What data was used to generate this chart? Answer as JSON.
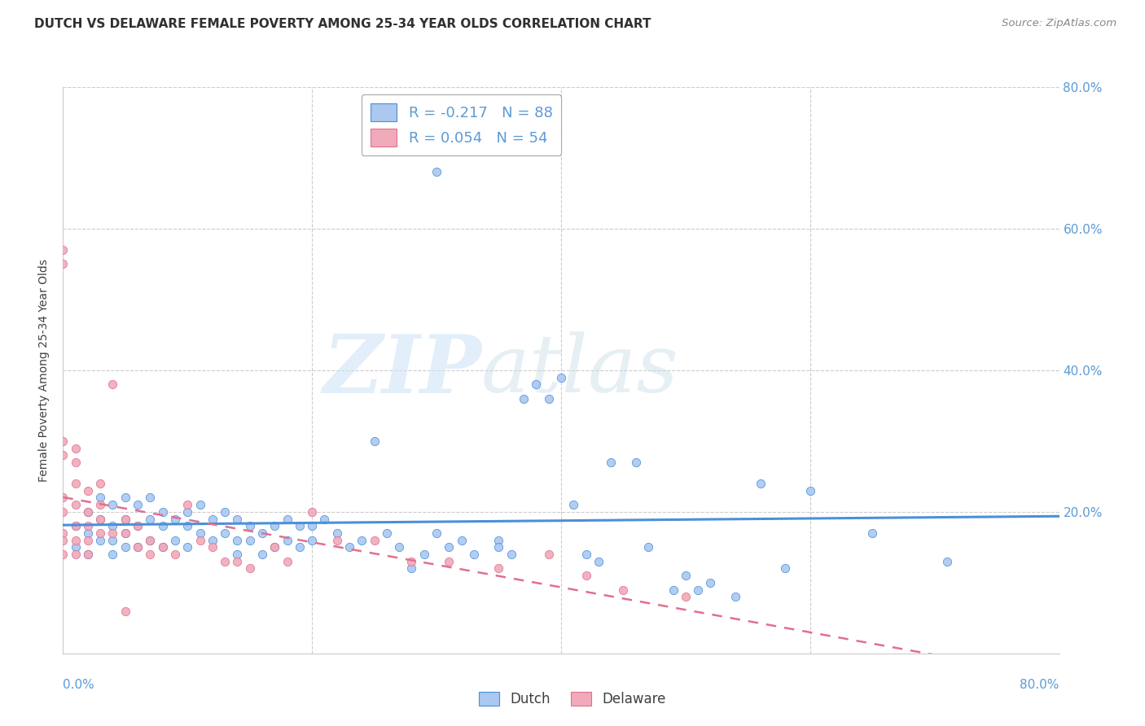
{
  "title": "DUTCH VS DELAWARE FEMALE POVERTY AMONG 25-34 YEAR OLDS CORRELATION CHART",
  "source": "Source: ZipAtlas.com",
  "ylabel": "Female Poverty Among 25-34 Year Olds",
  "xlim": [
    0.0,
    0.8
  ],
  "ylim": [
    0.0,
    0.8
  ],
  "xtick_vals": [
    0.0,
    0.2,
    0.4,
    0.6,
    0.8
  ],
  "ytick_vals": [
    0.0,
    0.2,
    0.4,
    0.6,
    0.8
  ],
  "dutch_R": -0.217,
  "dutch_N": 88,
  "delaware_R": 0.054,
  "delaware_N": 54,
  "dutch_color": "#aac8f0",
  "delaware_color": "#f0aaba",
  "dutch_line_color": "#4a90d9",
  "delaware_line_color": "#e07090",
  "legend_dutch_label": "Dutch",
  "legend_delaware_label": "Delaware",
  "watermark_zip": "ZIP",
  "watermark_atlas": "atlas",
  "background_color": "#ffffff",
  "grid_color": "#cccccc",
  "dutch_x": [
    0.01,
    0.01,
    0.02,
    0.02,
    0.02,
    0.03,
    0.03,
    0.03,
    0.04,
    0.04,
    0.04,
    0.04,
    0.05,
    0.05,
    0.05,
    0.05,
    0.06,
    0.06,
    0.06,
    0.07,
    0.07,
    0.07,
    0.08,
    0.08,
    0.08,
    0.09,
    0.09,
    0.1,
    0.1,
    0.1,
    0.11,
    0.11,
    0.12,
    0.12,
    0.13,
    0.13,
    0.14,
    0.14,
    0.14,
    0.15,
    0.15,
    0.16,
    0.16,
    0.17,
    0.17,
    0.18,
    0.18,
    0.19,
    0.19,
    0.2,
    0.2,
    0.21,
    0.22,
    0.23,
    0.24,
    0.25,
    0.26,
    0.27,
    0.28,
    0.29,
    0.3,
    0.31,
    0.32,
    0.33,
    0.35,
    0.36,
    0.37,
    0.38,
    0.39,
    0.4,
    0.41,
    0.43,
    0.44,
    0.46,
    0.47,
    0.49,
    0.5,
    0.51,
    0.52,
    0.54,
    0.56,
    0.58,
    0.6,
    0.65,
    0.71,
    0.3,
    0.35,
    0.42
  ],
  "dutch_y": [
    0.18,
    0.15,
    0.2,
    0.17,
    0.14,
    0.22,
    0.19,
    0.16,
    0.21,
    0.18,
    0.16,
    0.14,
    0.22,
    0.19,
    0.17,
    0.15,
    0.21,
    0.18,
    0.15,
    0.22,
    0.19,
    0.16,
    0.2,
    0.18,
    0.15,
    0.19,
    0.16,
    0.2,
    0.18,
    0.15,
    0.21,
    0.17,
    0.19,
    0.16,
    0.2,
    0.17,
    0.19,
    0.16,
    0.14,
    0.18,
    0.16,
    0.17,
    0.14,
    0.18,
    0.15,
    0.19,
    0.16,
    0.18,
    0.15,
    0.18,
    0.16,
    0.19,
    0.17,
    0.15,
    0.16,
    0.3,
    0.17,
    0.15,
    0.12,
    0.14,
    0.17,
    0.15,
    0.16,
    0.14,
    0.16,
    0.14,
    0.36,
    0.38,
    0.36,
    0.39,
    0.21,
    0.13,
    0.27,
    0.27,
    0.15,
    0.09,
    0.11,
    0.09,
    0.1,
    0.08,
    0.24,
    0.12,
    0.23,
    0.17,
    0.13,
    0.68,
    0.15,
    0.14
  ],
  "delaware_x": [
    0.0,
    0.0,
    0.0,
    0.0,
    0.0,
    0.0,
    0.0,
    0.0,
    0.0,
    0.01,
    0.01,
    0.01,
    0.01,
    0.01,
    0.01,
    0.01,
    0.02,
    0.02,
    0.02,
    0.02,
    0.02,
    0.03,
    0.03,
    0.03,
    0.03,
    0.04,
    0.04,
    0.05,
    0.05,
    0.05,
    0.06,
    0.06,
    0.07,
    0.07,
    0.08,
    0.09,
    0.1,
    0.11,
    0.12,
    0.13,
    0.14,
    0.15,
    0.17,
    0.18,
    0.2,
    0.22,
    0.25,
    0.28,
    0.31,
    0.35,
    0.39,
    0.42,
    0.45,
    0.5
  ],
  "delaware_y": [
    0.57,
    0.55,
    0.3,
    0.28,
    0.22,
    0.2,
    0.17,
    0.16,
    0.14,
    0.29,
    0.27,
    0.24,
    0.21,
    0.18,
    0.16,
    0.14,
    0.23,
    0.2,
    0.18,
    0.16,
    0.14,
    0.24,
    0.21,
    0.19,
    0.17,
    0.38,
    0.17,
    0.19,
    0.17,
    0.06,
    0.18,
    0.15,
    0.16,
    0.14,
    0.15,
    0.14,
    0.21,
    0.16,
    0.15,
    0.13,
    0.13,
    0.12,
    0.15,
    0.13,
    0.2,
    0.16,
    0.16,
    0.13,
    0.13,
    0.12,
    0.14,
    0.11,
    0.09,
    0.08
  ]
}
